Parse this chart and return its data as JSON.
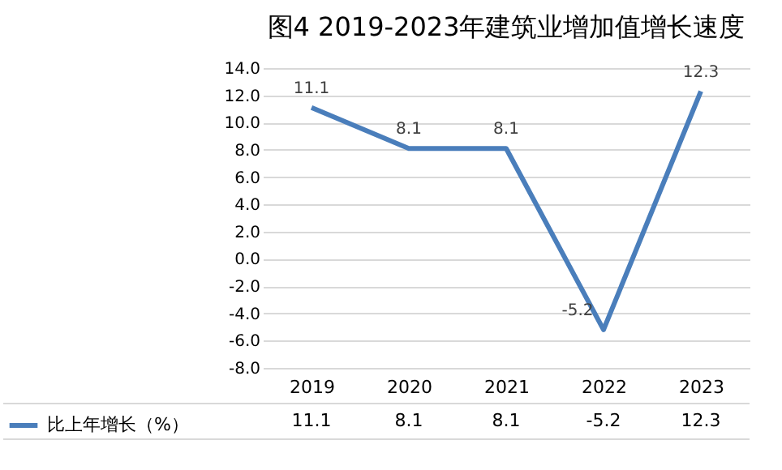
{
  "chart_data": {
    "type": "line",
    "title": "图4  2019-2023年建筑业增加值增长速度",
    "categories": [
      "2019",
      "2020",
      "2021",
      "2022",
      "2023"
    ],
    "series": [
      {
        "name": "比上年增长（%）",
        "color": "#4a7ebb",
        "values": [
          11.1,
          8.1,
          8.1,
          -5.2,
          12.3
        ],
        "value_labels": [
          "11.1",
          "8.1",
          "8.1",
          "-5.2",
          "12.3"
        ]
      }
    ],
    "ylim": [
      -8,
      14
    ],
    "yticks": [
      {
        "value": -8,
        "label": "-8.0"
      },
      {
        "value": -6,
        "label": "-6.0"
      },
      {
        "value": -4,
        "label": "-4.0"
      },
      {
        "value": -2,
        "label": "-2.0"
      },
      {
        "value": 0,
        "label": "0.0"
      },
      {
        "value": 2,
        "label": "2.0"
      },
      {
        "value": 4,
        "label": "4.0"
      },
      {
        "value": 6,
        "label": "6.0"
      },
      {
        "value": 8,
        "label": "8.0"
      },
      {
        "value": 10,
        "label": "10.0"
      },
      {
        "value": 12,
        "label": "12.0"
      },
      {
        "value": 14,
        "label": "14.0"
      }
    ],
    "annotations": [
      "11.1",
      "8.1",
      "8.1",
      "-5.2",
      "12.3"
    ],
    "grid": "y",
    "legend": "bottom",
    "data_labels": true,
    "marker": "none",
    "line_style": "solid"
  }
}
